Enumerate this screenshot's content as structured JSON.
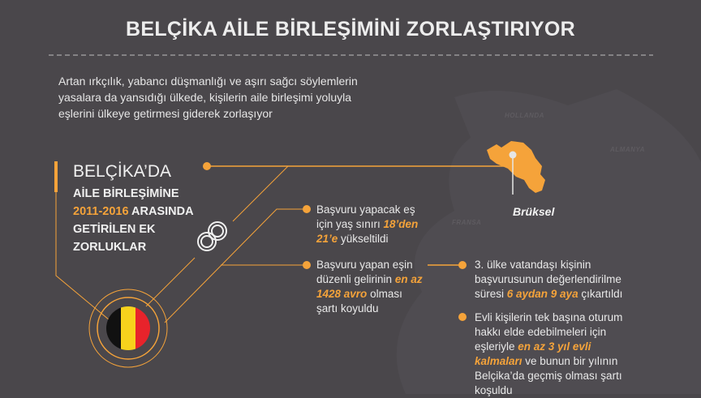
{
  "title": "BELÇİKA AİLE BİRLEŞİMİNİ ZORLAŞTIRIYOR",
  "intro": [
    "Artan ırkçılık, yabancı düşmanlığı ve aşırı sağcı söylemlerin",
    "yasalara da yansıdığı ülkede, kişilerin aile birleşimi yoluyla",
    "eşlerini ülkeye getirmesi giderek zorlaşıyor"
  ],
  "heading": "BELÇİKA’DA",
  "sub": {
    "line1": "AİLE BİRLEŞİMİNE",
    "years": "2011-2016",
    "line2_rest": " ARASINDA",
    "line3": "GETİRİLEN EK",
    "line4": "ZORLUKLAR"
  },
  "map": {
    "labels": [
      "HOLLANDA",
      "ALMANYA",
      "FRANSA"
    ],
    "city": "Brüksel"
  },
  "bullets": [
    {
      "pre": "Başvuru yapacak eş için yaş sınırı ",
      "hl": "18’den 21’e",
      "post": " yükseltildi"
    },
    {
      "pre": "Başvuru yapan eşin düzenli gelirinin ",
      "hl": "en az 1428 avro",
      "post": " olması şartı koyuldu"
    },
    {
      "pre": "3. ülke vatandaşı kişinin başvurusunun değerlendirilme süresi ",
      "hl": "6 aydan 9 aya",
      "post": " çıkartıldı"
    },
    {
      "pre": "Evli kişilerin tek başına oturum hakkı elde edebilmeleri için eşleriyle ",
      "hl": "en az 3 yıl evli kalmaları",
      "post": " ve bunun bir yılının Belçika’da geçmiş olması şartı koşuldu"
    }
  ],
  "colors": {
    "background": "#4a474b",
    "accent": "#f5a33a",
    "flag": [
      "#111111",
      "#f7d21c",
      "#e8232b"
    ]
  },
  "icons": [
    "wedding-rings-icon",
    "belgium-flag-icon",
    "map-pin-icon"
  ]
}
